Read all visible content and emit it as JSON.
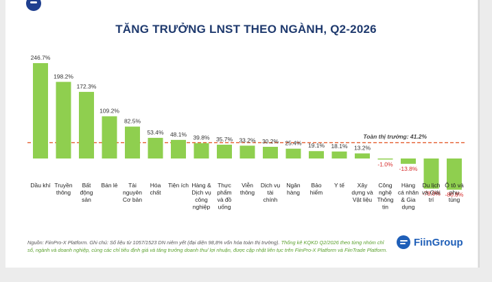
{
  "title": "TĂNG TRƯỞNG LNST THEO NGÀNH, Q2-2026",
  "colors": {
    "bar": "#8fcf4f",
    "negative_label": "#d62828",
    "reference": "#e8734a",
    "title": "#1f3a6e"
  },
  "chart_data": {
    "type": "bar",
    "title": "TĂNG TRƯỞNG LNST THEO NGÀNH, Q2-2026",
    "categories": [
      [
        "Dầu khí"
      ],
      [
        "Truyền",
        "thông"
      ],
      [
        "Bất",
        "động",
        "sản"
      ],
      [
        "Bán lẻ"
      ],
      [
        "Tài",
        "nguyên",
        "Cơ bản"
      ],
      [
        "Hóa",
        "chất"
      ],
      [
        "Tiện ích"
      ],
      [
        "Hàng &",
        "Dịch vụ",
        "công",
        "nghiệp"
      ],
      [
        "Thực",
        "phẩm",
        "và đồ",
        "uống"
      ],
      [
        "Viễn",
        "thông"
      ],
      [
        "Dịch vụ",
        "tài",
        "chính"
      ],
      [
        "Ngân",
        "hàng"
      ],
      [
        "Bảo",
        "hiểm"
      ],
      [
        "Y tế"
      ],
      [
        "Xây",
        "dựng và",
        "Vật liệu"
      ],
      [
        "Công",
        "nghệ",
        "Thông",
        "tin"
      ],
      [
        "Hàng",
        "cá nhân",
        "& Gia",
        "dụng"
      ],
      [
        "Du lịch",
        "và Giải",
        "trí"
      ],
      [
        "Ô tô và",
        "phụ",
        "tùng"
      ]
    ],
    "values": [
      246.7,
      198.2,
      172.3,
      109.2,
      82.5,
      53.4,
      48.1,
      39.8,
      35.7,
      33.2,
      30.2,
      25.4,
      19.1,
      18.1,
      13.2,
      -1.0,
      -13.8,
      -78.0,
      -80.8
    ],
    "value_labels": [
      "246.7%",
      "198.2%",
      "172.3%",
      "109.2%",
      "82.5%",
      "53.4%",
      "48.1%",
      "39.8%",
      "35.7%",
      "33.2%",
      "30.2%",
      "25.4%",
      "19.1%",
      "18.1%",
      "13.2%",
      "-1.0%",
      "-13.8%",
      "-78.0%",
      "-80.8%"
    ],
    "reference_line": {
      "value": 41.2,
      "label": "Toàn thị trường: 41.2%"
    }
  },
  "footnote": {
    "part1": "Nguồn: FiinPro-X Platform. Ghi chú: Số liệu từ 1057/1523 DN niêm yết (đại diện 98,8% vốn hóa toàn thị trường).",
    "part2": "Thống kê KQKD Q2/2026 theo từng nhóm chỉ số, ngành và doanh nghiệp, cùng các chỉ tiêu định giá và tăng trưởng doanh thu/ lợi nhuận, được cập nhật liên tục trên FiinPro-X Platform và FiinTrade Platform."
  },
  "brand": {
    "name": "FiinGroup",
    "icon": "fiingroup-logo-icon"
  }
}
